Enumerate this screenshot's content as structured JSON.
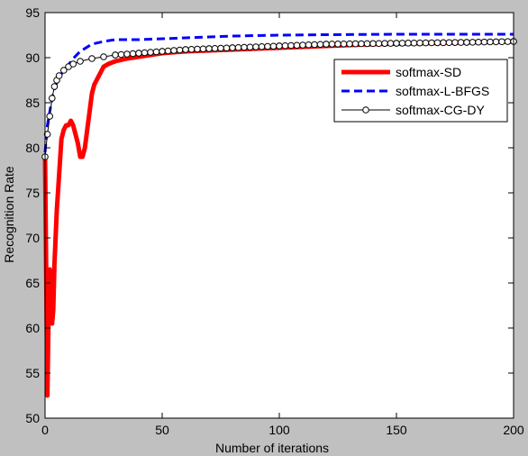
{
  "chart_data": {
    "type": "line",
    "title": "",
    "xlabel": "Number of iterations",
    "ylabel": "Recognition Rate",
    "xlim": [
      0,
      200
    ],
    "ylim": [
      50,
      95
    ],
    "xticks": [
      0,
      50,
      100,
      150,
      200
    ],
    "yticks": [
      50,
      55,
      60,
      65,
      70,
      75,
      80,
      85,
      90,
      95
    ],
    "grid": false,
    "legend_position": "top-right",
    "series": [
      {
        "name": "softmax-SD",
        "color": "#ff0000",
        "style": "solid-thick",
        "x": [
          0,
          1,
          1.5,
          2,
          2.5,
          3,
          3.5,
          4,
          4.5,
          5,
          6,
          7,
          8,
          9,
          10,
          11,
          12,
          13,
          14,
          15,
          16,
          17,
          18,
          19,
          20,
          21,
          22,
          23,
          24,
          25,
          27,
          30,
          35,
          40,
          50,
          60,
          70,
          80,
          90,
          100,
          120,
          140,
          160,
          180,
          200
        ],
        "y": [
          79,
          52.5,
          61.5,
          66.5,
          63.5,
          60.5,
          62,
          67,
          70,
          73,
          77,
          81,
          82,
          82.5,
          82.5,
          83,
          82.5,
          81.5,
          80.5,
          79,
          79,
          80,
          82,
          84,
          86,
          87,
          87.5,
          88,
          88.5,
          89,
          89.3,
          89.6,
          89.9,
          90.1,
          90.5,
          90.7,
          90.8,
          90.9,
          91,
          91.1,
          91.3,
          91.5,
          91.6,
          91.7,
          91.8
        ]
      },
      {
        "name": "softmax-L-BFGS",
        "color": "#0000ff",
        "style": "dashed",
        "x": [
          0,
          1,
          2,
          3,
          4,
          5,
          6,
          8,
          10,
          12,
          15,
          20,
          25,
          30,
          40,
          50,
          60,
          70,
          80,
          100,
          120,
          150,
          180,
          200
        ],
        "y": [
          79.5,
          82.5,
          84,
          85.5,
          86.5,
          87.2,
          87.8,
          88.6,
          89.2,
          89.9,
          90.7,
          91.5,
          91.8,
          92,
          92,
          92.1,
          92.2,
          92.3,
          92.4,
          92.5,
          92.55,
          92.6,
          92.6,
          92.6
        ]
      },
      {
        "name": "softmax-CG-DY",
        "color": "#000000",
        "style": "solid-thin-circle",
        "x": [
          0,
          1,
          2,
          3,
          4,
          5,
          6,
          8,
          10,
          12,
          15,
          20,
          25,
          30,
          40,
          50,
          60,
          70,
          80,
          100,
          120,
          150,
          180,
          200
        ],
        "y": [
          79,
          81.5,
          83.5,
          85.5,
          86.8,
          87.5,
          88,
          88.6,
          89,
          89.3,
          89.6,
          89.9,
          90.1,
          90.3,
          90.5,
          90.7,
          90.9,
          91,
          91.1,
          91.3,
          91.5,
          91.6,
          91.7,
          91.8
        ]
      }
    ]
  }
}
